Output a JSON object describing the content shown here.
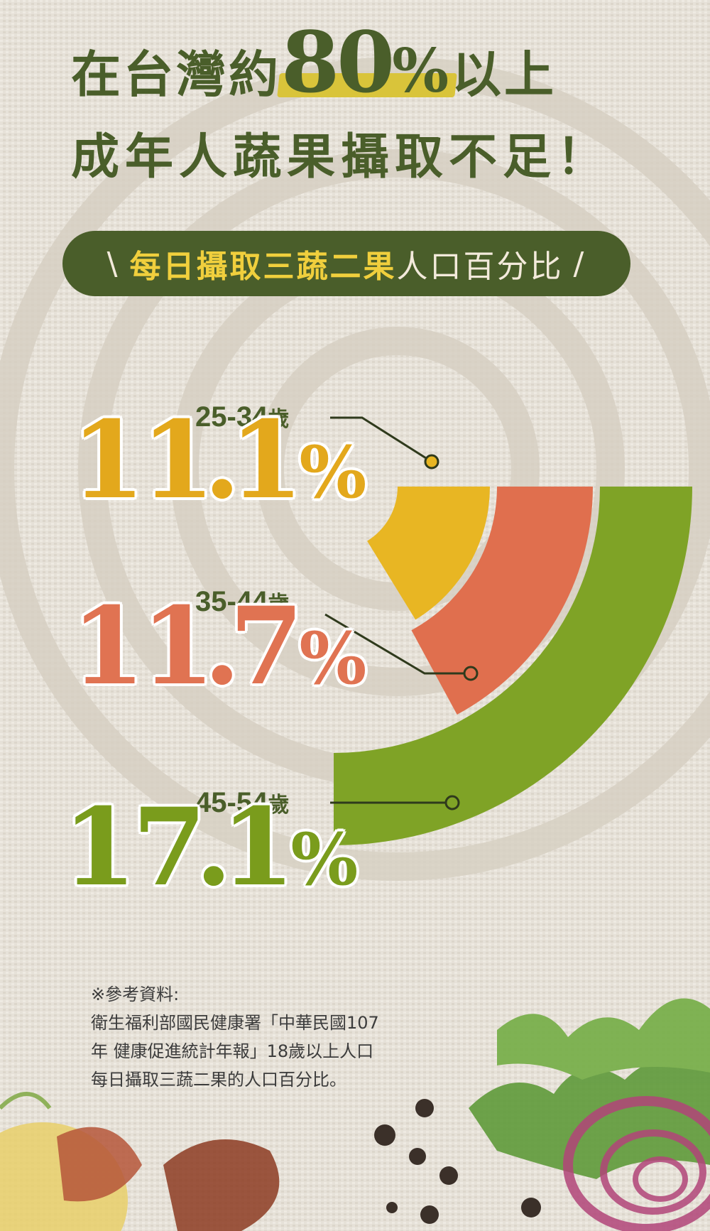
{
  "headline": {
    "line1_prefix": "在台灣約",
    "line1_number": "80",
    "line1_percent": "%",
    "line1_suffix": "以上",
    "line2": "成年人蔬果攝取不足！"
  },
  "subtitle_pill": {
    "slash_left": "\\",
    "highlight": "每日攝取三蔬二果",
    "rest": "人口百分比",
    "slash_right": "/"
  },
  "chart_data": {
    "type": "bar",
    "title": "每日攝取三蔬二果人口百分比",
    "categories": [
      "25-34歲",
      "35-44歲",
      "45-54歲"
    ],
    "values": [
      11.1,
      11.7,
      17.1
    ],
    "value_labels": [
      "11.1%",
      "11.7%",
      "17.1%"
    ],
    "unit": "%",
    "colors": [
      "#e8b623",
      "#e06f4e",
      "#7fa326"
    ]
  },
  "groups": [
    {
      "age_range": "25-34",
      "age_unit": "歲",
      "int": "11",
      "dec": "1",
      "sym": "%",
      "color": "#e3a81c"
    },
    {
      "age_range": "35-44",
      "age_unit": "歲",
      "int": "11",
      "dec": "7",
      "sym": "%",
      "color": "#e07352"
    },
    {
      "age_range": "45-54",
      "age_unit": "歲",
      "int": "17",
      "dec": "1",
      "sym": "%",
      "color": "#7a9c1c"
    }
  ],
  "source": {
    "label": "※參考資料:",
    "line1": "衛生福利部國民健康署「中華民國107",
    "line2": "年 健康促進統計年報」18歲以上人口",
    "line3": "每日攝取三蔬二果的人口百分比。"
  },
  "colors": {
    "bg": "#e6e1d8",
    "dark_green": "#4a5e2a",
    "pill_yellow": "#f0cf3d"
  }
}
